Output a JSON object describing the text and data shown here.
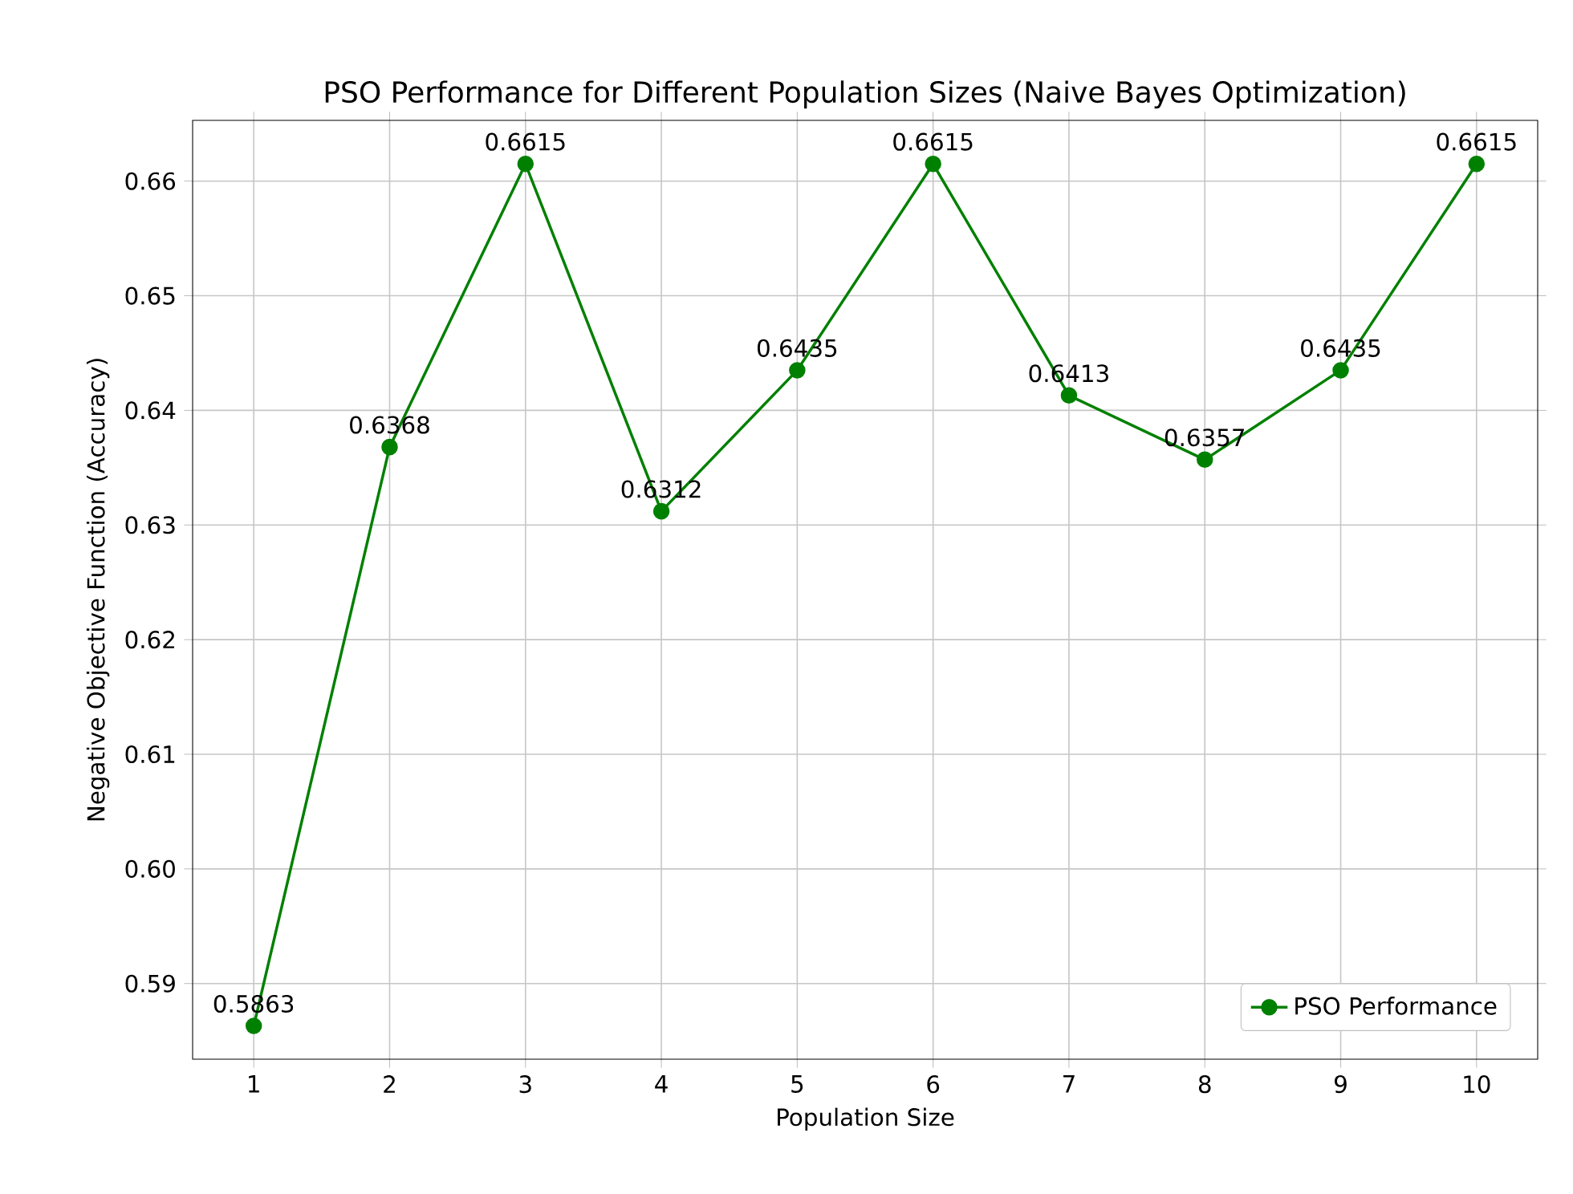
{
  "chart_data": {
    "type": "line",
    "title": "PSO Performance for Different Population Sizes (Naive Bayes Optimization)",
    "xlabel": "Population Size",
    "ylabel": "Negative Objective Function (Accuracy)",
    "x": [
      1,
      2,
      3,
      4,
      5,
      6,
      7,
      8,
      9,
      10
    ],
    "series": [
      {
        "name": "PSO Performance",
        "color": "#008000",
        "values": [
          0.5863,
          0.6368,
          0.6615,
          0.6312,
          0.6435,
          0.6615,
          0.6413,
          0.6357,
          0.6435,
          0.6615
        ],
        "value_labels": [
          "0.5863",
          "0.6368",
          "0.6615",
          "0.6312",
          "0.6435",
          "0.6615",
          "0.6413",
          "0.6357",
          "0.6435",
          "0.6615"
        ]
      }
    ],
    "xlim": [
      0.55,
      10.45
    ],
    "ylim": [
      0.5834,
      0.6653
    ],
    "xticks": [
      1,
      2,
      3,
      4,
      5,
      6,
      7,
      8,
      9,
      10
    ],
    "yticks": [
      {
        "value": 0.59,
        "label": "0.59"
      },
      {
        "value": 0.6,
        "label": "0.60"
      },
      {
        "value": 0.61,
        "label": "0.61"
      },
      {
        "value": 0.62,
        "label": "0.62"
      },
      {
        "value": 0.63,
        "label": "0.63"
      },
      {
        "value": 0.64,
        "label": "0.64"
      },
      {
        "value": 0.65,
        "label": "0.65"
      },
      {
        "value": 0.66,
        "label": "0.66"
      }
    ],
    "grid": true,
    "legend": "bottom right",
    "marker": "circle",
    "line_style": "solid"
  }
}
